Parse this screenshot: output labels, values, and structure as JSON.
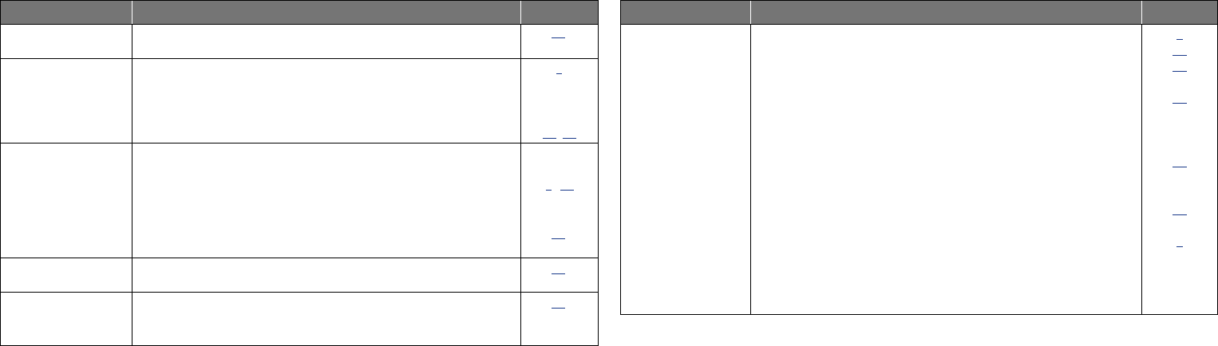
{
  "colors": {
    "header": "#757575",
    "link": "#1a3a8a",
    "border": "#000000"
  },
  "left_table": {
    "headers": [
      "",
      "",
      ""
    ],
    "rows": [
      {
        "links": [
          ""
        ]
      },
      {
        "links": [
          "",
          "",
          ""
        ]
      },
      {
        "links": [
          "",
          "",
          ""
        ]
      },
      {
        "links": [
          ""
        ]
      },
      {
        "links": [
          ""
        ]
      }
    ]
  },
  "right_table": {
    "headers": [
      "",
      "",
      ""
    ],
    "rows": [
      {
        "links": [
          "",
          "",
          "",
          "",
          "",
          "",
          ""
        ]
      }
    ]
  }
}
